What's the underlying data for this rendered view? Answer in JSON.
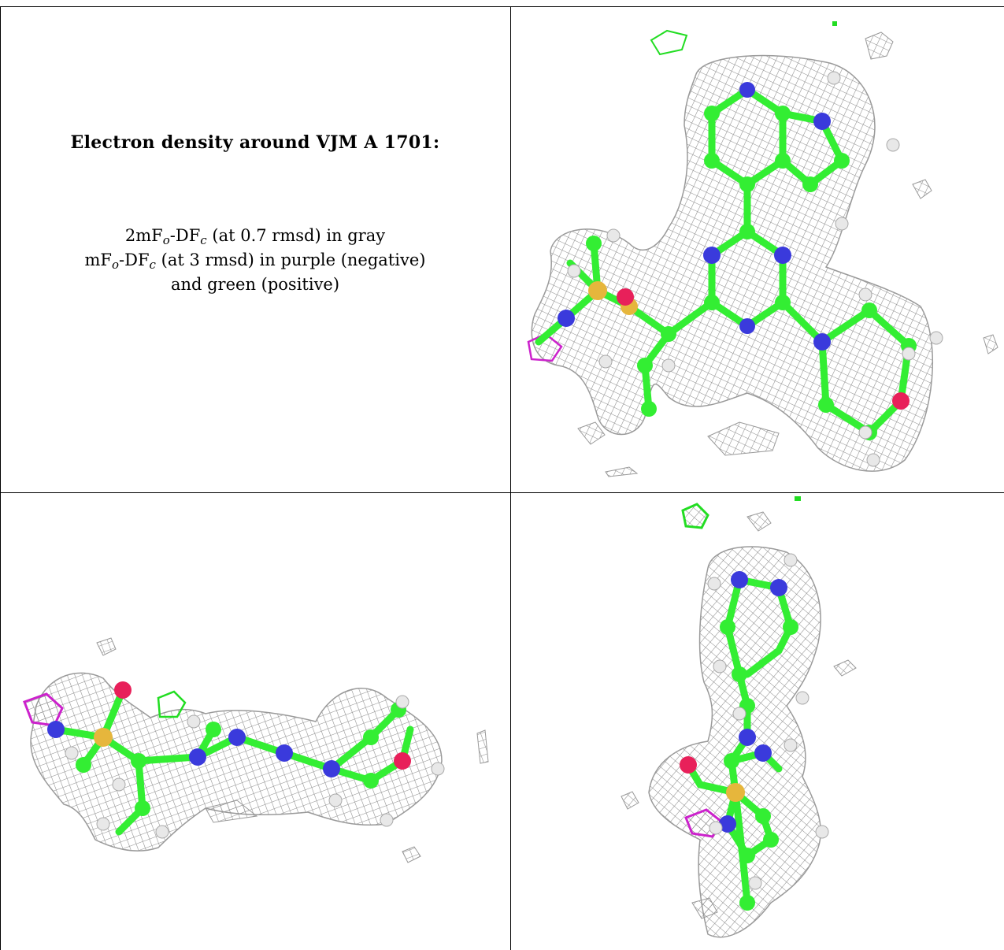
{
  "caption": {
    "title": "Electron density around VJM A 1701:",
    "line1": {
      "pre": "2mF",
      "sub1": "o",
      "mid": "-DF",
      "sub2": "c",
      "post": " (at 0.7 rmsd) in gray"
    },
    "line2": {
      "pre": "mF",
      "sub1": "o",
      "mid": "-DF",
      "sub2": "c",
      "post": " (at 3 rmsd) in purple (negative)"
    },
    "line3": "and green (positive)"
  },
  "colors": {
    "mesh_gray": "#8c8c8c",
    "carbon_green": "#33ee33",
    "nitrogen_blue": "#3a3adc",
    "oxygen_red": "#e8205a",
    "sulfur_yellow": "#e6b63c",
    "hydrogen_white": "#e8e8e8",
    "negative_purple": "#cc22cc",
    "positive_green": "#22dd22"
  }
}
